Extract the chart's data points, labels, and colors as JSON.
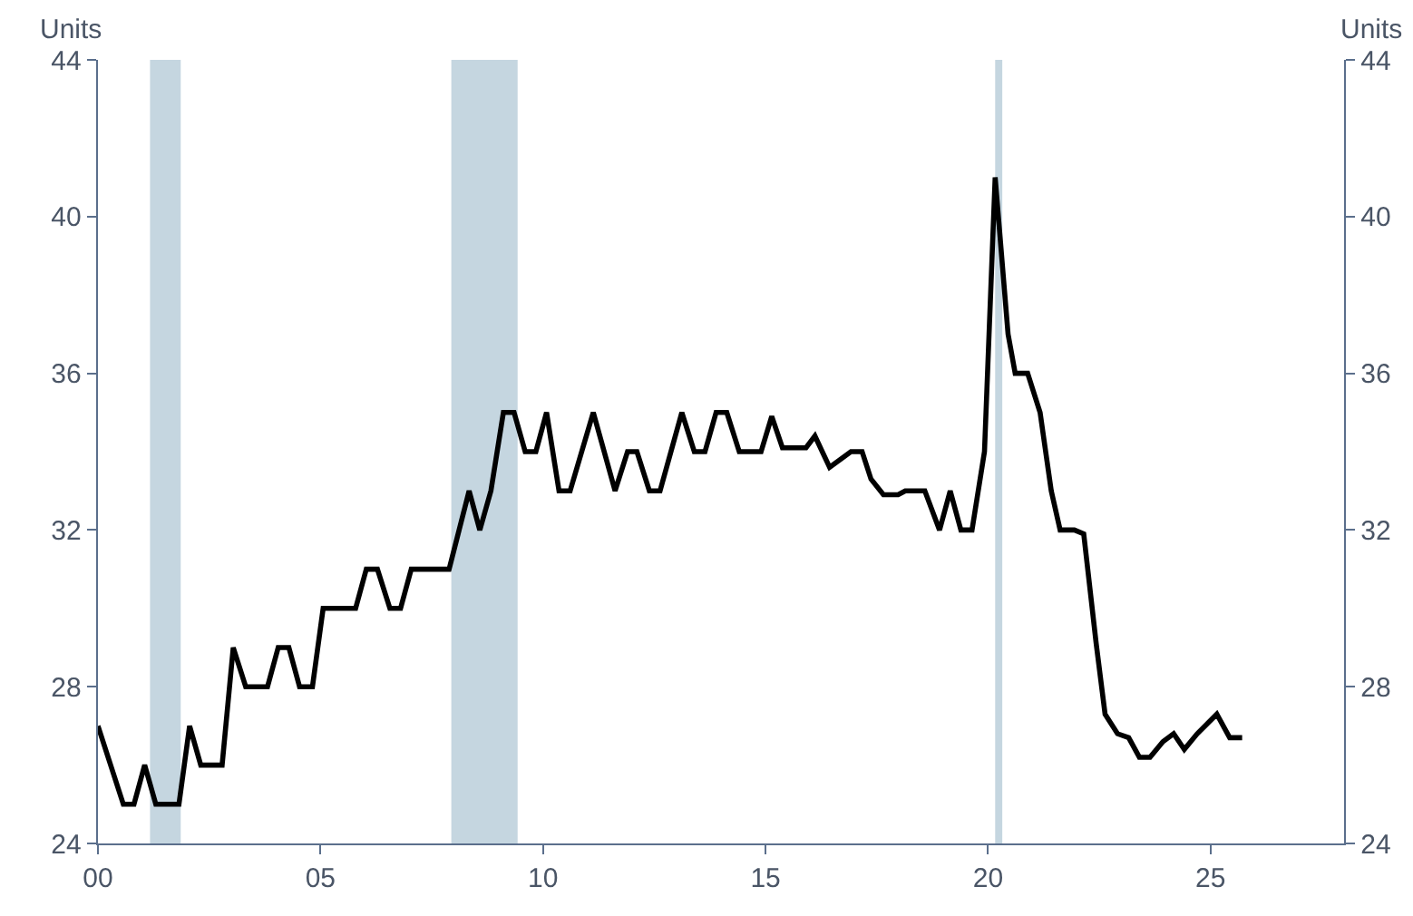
{
  "chart_data": {
    "type": "line",
    "ylabel": "Units",
    "y2label": "Units",
    "x": [
      2000.0,
      2000.57,
      2000.81,
      2001.05,
      2001.3,
      2001.82,
      2002.06,
      2002.31,
      2002.79,
      2003.04,
      2003.32,
      2003.81,
      2004.05,
      2004.29,
      2004.53,
      2004.82,
      2005.06,
      2005.79,
      2006.03,
      2006.28,
      2006.56,
      2006.8,
      2007.04,
      2007.89,
      2008.34,
      2008.58,
      2008.83,
      2009.11,
      2009.35,
      2009.6,
      2009.84,
      2010.08,
      2010.36,
      2010.61,
      2011.13,
      2011.62,
      2011.9,
      2012.11,
      2012.39,
      2012.63,
      2013.12,
      2013.4,
      2013.64,
      2013.89,
      2014.13,
      2014.41,
      2014.9,
      2015.14,
      2015.38,
      2015.91,
      2016.11,
      2016.44,
      2016.92,
      2017.17,
      2017.37,
      2017.65,
      2017.98,
      2018.14,
      2018.58,
      2018.91,
      2019.15,
      2019.39,
      2019.64,
      2019.92,
      2020.16,
      2020.45,
      2020.61,
      2020.89,
      2021.17,
      2021.42,
      2021.62,
      2021.94,
      2022.15,
      2022.43,
      2022.63,
      2022.91,
      2023.16,
      2023.4,
      2023.64,
      2023.93,
      2024.17,
      2024.41,
      2024.7,
      2025.14,
      2025.43,
      2025.71
    ],
    "series": [
      {
        "color": "#000000",
        "values": [
          27,
          25,
          25,
          26,
          25,
          25,
          27,
          26,
          26,
          29,
          28,
          28,
          29,
          29,
          28,
          28,
          30,
          30,
          31,
          31,
          30,
          30,
          31,
          31,
          33,
          32,
          33,
          35,
          35,
          34,
          34,
          35,
          33,
          33,
          35,
          33,
          34,
          34,
          33,
          33,
          35,
          34,
          34,
          35,
          35,
          34,
          34,
          34.9,
          34.1,
          34.1,
          34.4,
          33.6,
          34.0,
          34.0,
          33.3,
          32.9,
          32.9,
          33.0,
          33.0,
          32.0,
          33.0,
          32.0,
          32.0,
          34.0,
          41.0,
          37,
          36,
          36,
          35,
          33,
          32,
          32,
          31.9,
          29.1,
          27.3,
          26.8,
          26.7,
          26.2,
          26.2,
          26.6,
          26.8,
          26.4,
          26.8,
          27.3,
          26.7,
          26.7
        ]
      }
    ],
    "xlim": [
      2000,
      2028
    ],
    "xticks": [
      {
        "value": 2000,
        "label": "00"
      },
      {
        "value": 2005,
        "label": "05"
      },
      {
        "value": 2010,
        "label": "10"
      },
      {
        "value": 2015,
        "label": "15"
      },
      {
        "value": 2020,
        "label": "20"
      },
      {
        "value": 2025,
        "label": "25"
      }
    ],
    "ylim": [
      24,
      44
    ],
    "yticks": [
      24,
      28,
      32,
      36,
      40,
      44
    ],
    "y2lim": [
      24,
      44
    ],
    "y2ticks": [
      24,
      28,
      32,
      36,
      40,
      44
    ],
    "bands": [
      {
        "axis": "x",
        "from": 2001.17,
        "to": 2001.86,
        "color": "#c5d6e0"
      },
      {
        "axis": "x",
        "from": 2007.94,
        "to": 2009.43,
        "color": "#c5d6e0"
      },
      {
        "axis": "x",
        "from": 2020.16,
        "to": 2020.32,
        "color": "#c5d6e0"
      }
    ],
    "grid": false,
    "marker": "none",
    "line_style": "solid"
  }
}
